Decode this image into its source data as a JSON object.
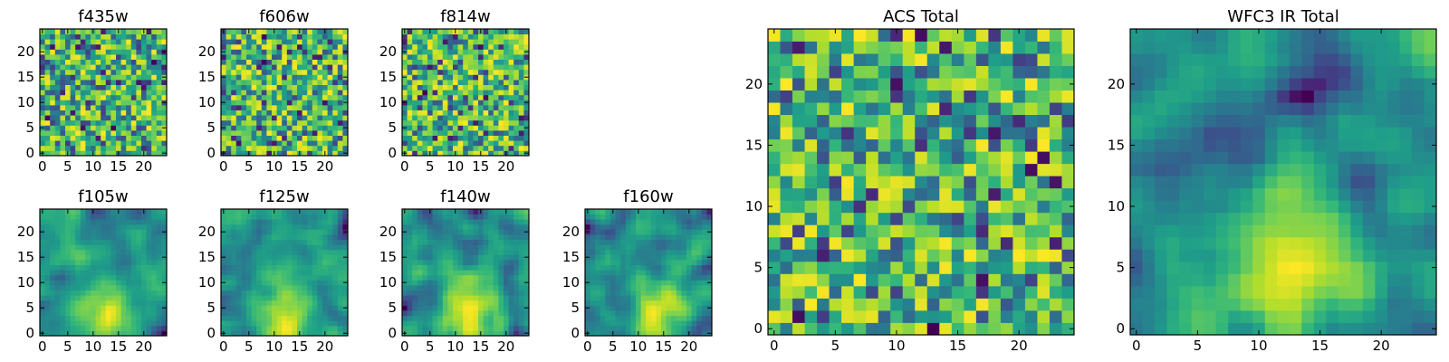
{
  "chart_data": [
    {
      "type": "heatmap",
      "title": "f435w",
      "colormap": "viridis",
      "grid_size": 25,
      "x_ticks": [
        0,
        5,
        10,
        15,
        20
      ],
      "y_ticks": [
        0,
        5,
        10,
        15,
        20
      ],
      "xlim": [
        -0.5,
        24.5
      ],
      "ylim": [
        -0.5,
        24.5
      ],
      "seed": 11,
      "pattern": "noise"
    },
    {
      "type": "heatmap",
      "title": "f606w",
      "colormap": "viridis",
      "grid_size": 25,
      "x_ticks": [
        0,
        5,
        10,
        15,
        20
      ],
      "y_ticks": [
        0,
        5,
        10,
        15,
        20
      ],
      "xlim": [
        -0.5,
        24.5
      ],
      "ylim": [
        -0.5,
        24.5
      ],
      "seed": 23,
      "pattern": "noise"
    },
    {
      "type": "heatmap",
      "title": "f814w",
      "colormap": "viridis",
      "grid_size": 25,
      "x_ticks": [
        0,
        5,
        10,
        15,
        20
      ],
      "y_ticks": [
        0,
        5,
        10,
        15,
        20
      ],
      "xlim": [
        -0.5,
        24.5
      ],
      "ylim": [
        -0.5,
        24.5
      ],
      "seed": 37,
      "pattern": "noise"
    },
    {
      "type": "heatmap",
      "title": "f105w",
      "colormap": "viridis",
      "grid_size": 25,
      "x_ticks": [
        0,
        5,
        10,
        15,
        20
      ],
      "y_ticks": [
        0,
        5,
        10,
        15,
        20
      ],
      "xlim": [
        -0.5,
        24.5
      ],
      "ylim": [
        -0.5,
        24.5
      ],
      "seed": 41,
      "pattern": "smooth"
    },
    {
      "type": "heatmap",
      "title": "f125w",
      "colormap": "viridis",
      "grid_size": 25,
      "x_ticks": [
        0,
        5,
        10,
        15,
        20
      ],
      "y_ticks": [
        0,
        5,
        10,
        15,
        20
      ],
      "xlim": [
        -0.5,
        24.5
      ],
      "ylim": [
        -0.5,
        24.5
      ],
      "seed": 53,
      "pattern": "smooth"
    },
    {
      "type": "heatmap",
      "title": "f140w",
      "colormap": "viridis",
      "grid_size": 25,
      "x_ticks": [
        0,
        5,
        10,
        15,
        20
      ],
      "y_ticks": [
        0,
        5,
        10,
        15,
        20
      ],
      "xlim": [
        -0.5,
        24.5
      ],
      "ylim": [
        -0.5,
        24.5
      ],
      "seed": 67,
      "pattern": "smooth"
    },
    {
      "type": "heatmap",
      "title": "f160w",
      "colormap": "viridis",
      "grid_size": 25,
      "x_ticks": [
        0,
        5,
        10,
        15,
        20
      ],
      "y_ticks": [
        0,
        5,
        10,
        15,
        20
      ],
      "xlim": [
        -0.5,
        24.5
      ],
      "ylim": [
        -0.5,
        24.5
      ],
      "seed": 79,
      "pattern": "smooth"
    },
    {
      "type": "heatmap",
      "title": "ACS Total",
      "colormap": "viridis",
      "grid_size": 25,
      "x_ticks": [
        0,
        5,
        10,
        15,
        20
      ],
      "y_ticks": [
        0,
        5,
        10,
        15,
        20
      ],
      "xlim": [
        -0.5,
        24.5
      ],
      "ylim": [
        -0.5,
        24.5
      ],
      "seed": 97,
      "pattern": "noise"
    },
    {
      "type": "heatmap",
      "title": "WFC3 IR Total",
      "colormap": "viridis",
      "grid_size": 25,
      "x_ticks": [
        0,
        5,
        10,
        15,
        20
      ],
      "y_ticks": [
        0,
        5,
        10,
        15,
        20
      ],
      "xlim": [
        -0.5,
        24.5
      ],
      "ylim": [
        -0.5,
        24.5
      ],
      "seed": 101,
      "pattern": "smooth"
    }
  ]
}
